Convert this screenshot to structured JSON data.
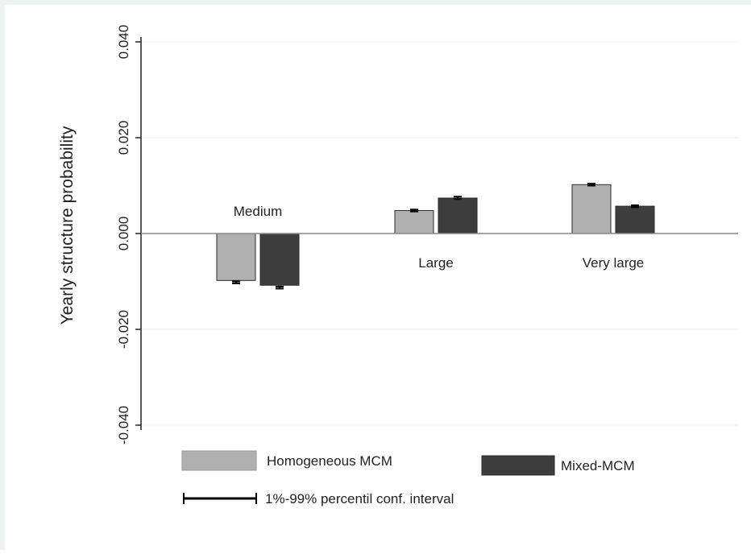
{
  "chart_data": {
    "type": "bar",
    "categories": [
      "Medium",
      "Large",
      "Very large"
    ],
    "series": [
      {
        "name": "Homogeneous MCM",
        "color": "#b0b0b0",
        "values": [
          -0.0098,
          0.0048,
          0.0102
        ],
        "ci": [
          [
            -0.0104,
            -0.01
          ],
          [
            0.0046,
            0.005
          ],
          [
            0.01,
            0.0104
          ]
        ]
      },
      {
        "name": "Mixed-MCM",
        "color": "#3d3d3d",
        "values": [
          -0.0108,
          0.0074,
          0.0057
        ],
        "ci": [
          [
            -0.0115,
            -0.0111
          ],
          [
            0.0072,
            0.0077
          ],
          [
            0.0055,
            0.0059
          ]
        ]
      }
    ],
    "ylabel": "Yearly structure probability",
    "ylim": [
      -0.04,
      0.04
    ],
    "yticks": [
      "-0.040",
      "-0.020",
      "0.000",
      "0.020",
      "0.040"
    ],
    "ytick_values": [
      -0.04,
      -0.02,
      0.0,
      0.02,
      0.04
    ],
    "grid": true,
    "legend": {
      "entries": [
        "Homogeneous MCM",
        "Mixed-MCM"
      ],
      "ci_label": "1%-99% percentil conf. interval",
      "position": "bottom"
    }
  }
}
